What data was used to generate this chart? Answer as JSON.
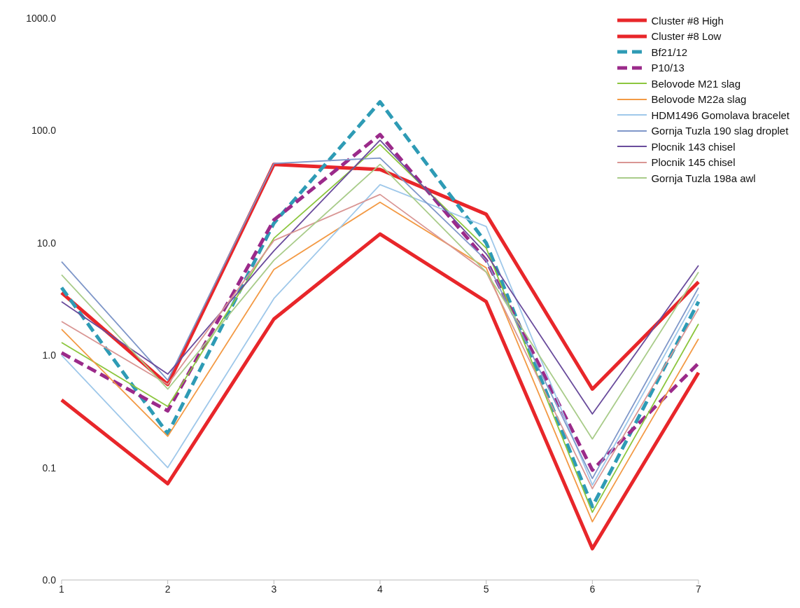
{
  "chart_data": {
    "type": "line",
    "categories": [
      "1",
      "2",
      "3",
      "4",
      "5",
      "6",
      "7"
    ],
    "series": [
      {
        "name": "Cluster #8 High",
        "color": "#e8262a",
        "line_style": "solid",
        "values": [
          3.6,
          0.55,
          50,
          45,
          18,
          0.5,
          4.5
        ]
      },
      {
        "name": "Cluster #8 Low",
        "color": "#e8262a",
        "line_style": "solid",
        "values": [
          0.4,
          0.072,
          2.1,
          12,
          3.0,
          0.019,
          0.7
        ]
      },
      {
        "name": "Bf21/12",
        "color": "#2e9bb5",
        "line_style": "dashed",
        "values": [
          4.0,
          0.2,
          15,
          180,
          10,
          0.045,
          3.0
        ]
      },
      {
        "name": "P10/13",
        "color": "#9b2a8a",
        "line_style": "dashed",
        "values": [
          1.05,
          0.32,
          16,
          92,
          7,
          0.095,
          0.85
        ]
      },
      {
        "name": "Belovode M21 slag",
        "color": "#8cc63e",
        "line_style": "solid",
        "values": [
          1.3,
          0.35,
          11,
          75,
          9,
          0.04,
          1.9
        ]
      },
      {
        "name": "Belovode M22a slag",
        "color": "#f39a45",
        "line_style": "solid",
        "values": [
          1.7,
          0.19,
          5.8,
          23,
          6,
          0.033,
          1.4
        ]
      },
      {
        "name": "HDM1496 Gomolava bracelet",
        "color": "#9fc8ea",
        "line_style": "solid",
        "values": [
          1.0,
          0.1,
          3.2,
          33,
          14,
          0.07,
          3.5
        ]
      },
      {
        "name": "Gornja Tuzla 190 slag droplet",
        "color": "#7f97c9",
        "line_style": "solid",
        "values": [
          6.8,
          0.6,
          51,
          57,
          7,
          0.08,
          4
        ]
      },
      {
        "name": "Plocnik 143 chisel",
        "color": "#6a4c9c",
        "line_style": "solid",
        "values": [
          3.0,
          0.68,
          8.5,
          82,
          8,
          0.3,
          6.3
        ]
      },
      {
        "name": "Plocnik 145 chisel",
        "color": "#d99694",
        "line_style": "solid",
        "values": [
          2.0,
          0.55,
          10.5,
          27,
          5.5,
          0.065,
          2.6
        ]
      },
      {
        "name": "Gornja Tuzla 198a awl",
        "color": "#a9cc8a",
        "line_style": "solid",
        "values": [
          5.2,
          0.5,
          7,
          50,
          5.5,
          0.18,
          5.5
        ]
      }
    ],
    "log": true,
    "ylim": [
      0.01,
      1000
    ],
    "yticks": [
      {
        "value": 0.01,
        "label": "0.0"
      },
      {
        "value": 0.1,
        "label": "0.1"
      },
      {
        "value": 1,
        "label": "1.0"
      },
      {
        "value": 10,
        "label": "10.0"
      },
      {
        "value": 100,
        "label": "100.0"
      },
      {
        "value": 1000,
        "label": "1000.0"
      }
    ],
    "grid": false,
    "legend": "top right",
    "marker": "none"
  }
}
